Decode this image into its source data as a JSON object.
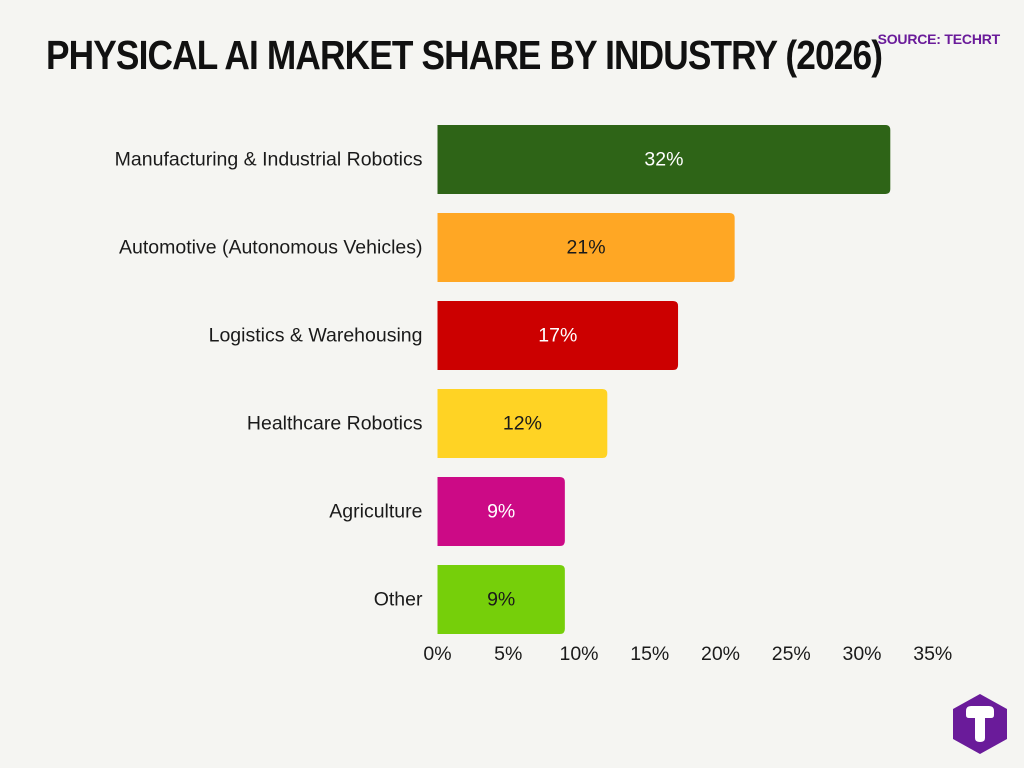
{
  "header": {
    "title": "PHYSICAL AI MARKET SHARE BY INDUSTRY (2026)",
    "source": "SOURCE: TECHRT"
  },
  "colors": {
    "background": "#f5f5f2",
    "accent": "#6a1b9a",
    "bars": [
      "#2e6417",
      "#ffa724",
      "#cc0000",
      "#ffd324",
      "#cc0a86",
      "#76cf0a"
    ],
    "bar_text": [
      "#ffffff",
      "#1a1a1a",
      "#ffffff",
      "#1a1a1a",
      "#ffffff",
      "#1a1a1a"
    ]
  },
  "logo": {
    "icon": "techrt-t-logo-icon"
  },
  "chart_data": {
    "type": "bar",
    "orientation": "horizontal",
    "title": "PHYSICAL AI MARKET SHARE BY INDUSTRY (2026)",
    "categories": [
      "Manufacturing & Industrial Robotics",
      "Automotive (Autonomous Vehicles)",
      "Logistics & Warehousing",
      "Healthcare Robotics",
      "Agriculture",
      "Other"
    ],
    "values": [
      32,
      21,
      17,
      12,
      9,
      9
    ],
    "value_labels": [
      "32%",
      "21%",
      "17%",
      "12%",
      "9%",
      "9%"
    ],
    "xlim": [
      0,
      35
    ],
    "xticks": [
      0,
      5,
      10,
      15,
      20,
      25,
      30,
      35
    ],
    "xtick_labels": [
      "0%",
      "5%",
      "10%",
      "15%",
      "20%",
      "25%",
      "30%",
      "35%"
    ],
    "grid": false,
    "legend": "none"
  }
}
